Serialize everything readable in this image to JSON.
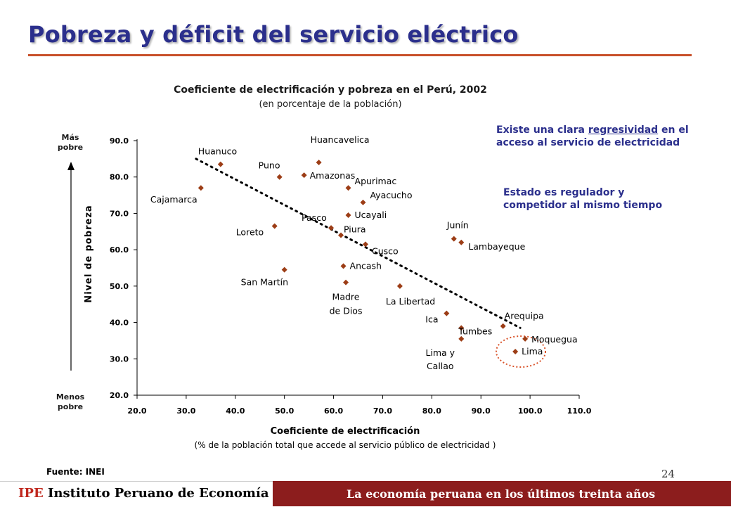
{
  "slide": {
    "title": "Pobreza y déficit del servicio eléctrico",
    "fuente": "Fuente: INEI",
    "page_number": "24"
  },
  "notes": {
    "note1_before": "Existe una clara ",
    "note1_underlined": "regresividad",
    "note1_after": " en el acceso al servicio de electricidad",
    "note2": "Estado es regulador y competidor al mismo tiempo"
  },
  "axis_annotations": {
    "top": "Más pobre",
    "bottom": "Menos pobre"
  },
  "footer": {
    "brand_short": "IPE",
    "brand_full": "Instituto Peruano de Economía",
    "tagline": "La economía peruana en los últimos treinta años"
  },
  "colors": {
    "title": "#2b2f8c",
    "accent_rule": "#c8502a",
    "marker": "#9c3d16",
    "highlight": "#d9542b",
    "footer_band": "#8c1d1d"
  },
  "chart_data": {
    "type": "scatter",
    "title": "Coeficiente de electrificación y pobreza en el Perú, 2002",
    "subtitle": "(en porcentaje de la población)",
    "xlabel": "Coeficiente de electrificación",
    "xlabel_sub": "(% de la población total que accede al servicio público de electricidad )",
    "ylabel": "Nivel de pobreza",
    "xlim": [
      20,
      110
    ],
    "ylim": [
      20,
      90
    ],
    "xticks": [
      "20.0",
      "30.0",
      "40.0",
      "50.0",
      "60.0",
      "70.0",
      "80.0",
      "90.0",
      "100.0",
      "110.0"
    ],
    "yticks": [
      "20.0",
      "30.0",
      "40.0",
      "50.0",
      "60.0",
      "70.0",
      "80.0",
      "90.0"
    ],
    "grid": false,
    "trendline": {
      "style": "dotted",
      "from": [
        32,
        85
      ],
      "to": [
        98,
        38.5
      ]
    },
    "highlight": [
      "Lima",
      "Moquegua"
    ],
    "points": [
      {
        "name": "Huancavelica",
        "x": 57,
        "y": 84
      },
      {
        "name": "Huanuco",
        "x": 37,
        "y": 83.5
      },
      {
        "name": "Amazonas",
        "x": 54,
        "y": 80.5
      },
      {
        "name": "Puno",
        "x": 49,
        "y": 80
      },
      {
        "name": "Cajamarca",
        "x": 33,
        "y": 77
      },
      {
        "name": "Apurimac",
        "x": 63,
        "y": 77
      },
      {
        "name": "Ayacucho",
        "x": 66,
        "y": 73
      },
      {
        "name": "Ucayali",
        "x": 63,
        "y": 69.5
      },
      {
        "name": "Pasco",
        "x": 59.5,
        "y": 66
      },
      {
        "name": "Loreto",
        "x": 48,
        "y": 66.5
      },
      {
        "name": "Piura",
        "x": 61.5,
        "y": 64
      },
      {
        "name": "Junín",
        "x": 84.5,
        "y": 63
      },
      {
        "name": "Lambayeque",
        "x": 86,
        "y": 62
      },
      {
        "name": "Cusco",
        "x": 66.5,
        "y": 61.5
      },
      {
        "name": "Ancash",
        "x": 62,
        "y": 55.5
      },
      {
        "name": "San Martín",
        "x": 50,
        "y": 54.5
      },
      {
        "name": "Madre de Dios",
        "x": 62.5,
        "y": 51
      },
      {
        "name": "La Libertad",
        "x": 73.5,
        "y": 50
      },
      {
        "name": "Ica",
        "x": 83,
        "y": 42.5
      },
      {
        "name": "Arequipa",
        "x": 94.5,
        "y": 39
      },
      {
        "name": "Tumbes",
        "x": 86,
        "y": 38.5
      },
      {
        "name": "Moquegua",
        "x": 99,
        "y": 35.5
      },
      {
        "name": "Lima y Callao",
        "x": 86,
        "y": 35.5
      },
      {
        "name": "Lima",
        "x": 97,
        "y": 32
      }
    ]
  }
}
